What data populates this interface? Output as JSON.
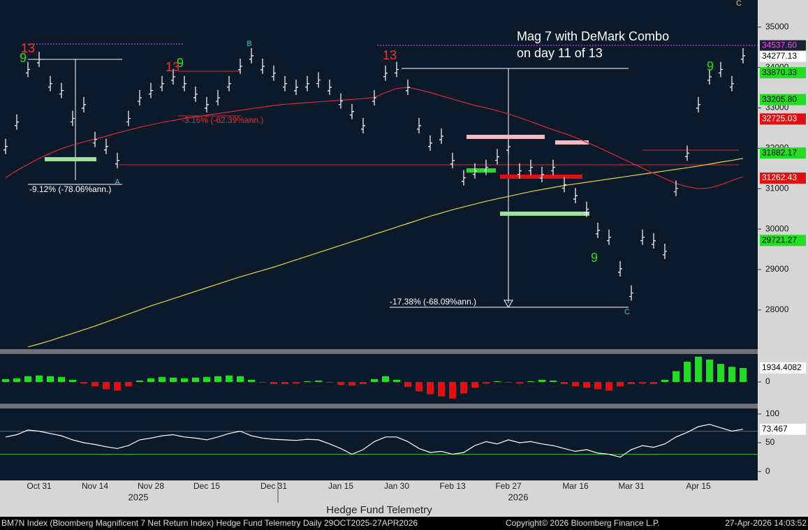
{
  "chart_data": [
    {
      "type": "ohlc",
      "title": "Mag 7 with DeMark Combo",
      "subtitle": "on day 11 of 13",
      "categories": [
        null,
        null,
        null,
        "Oct 31",
        null,
        null,
        null,
        null,
        "Nov 14",
        null,
        null,
        null,
        null,
        "Nov 28",
        null,
        null,
        null,
        null,
        "Dec 15",
        null,
        null,
        null,
        null,
        null,
        "Dec 31",
        null,
        null,
        null,
        null,
        null,
        "Jan 15",
        null,
        null,
        null,
        null,
        "Jan 30",
        null,
        null,
        null,
        null,
        "Feb 13",
        null,
        null,
        null,
        null,
        "Feb 27",
        null,
        null,
        null,
        null,
        null,
        "Mar 16",
        null,
        null,
        null,
        null,
        "Mar 31",
        null,
        null,
        null,
        null,
        null,
        "Apr 15",
        null,
        null,
        null,
        null
      ],
      "values": [
        32045,
        32650,
        33950,
        34200,
        33600,
        33430,
        32740,
        33080,
        32220,
        32045,
        31700,
        32740,
        33250,
        33430,
        33600,
        33770,
        33600,
        33340,
        33080,
        33250,
        33600,
        34030,
        34290,
        34030,
        33860,
        33600,
        33510,
        33600,
        33690,
        33510,
        33170,
        32910,
        32560,
        33250,
        33860,
        33950,
        33510,
        32560,
        32130,
        32300,
        31700,
        31270,
        31440,
        31530,
        31790,
        32040,
        31440,
        31530,
        31350,
        31530,
        31100,
        30830,
        30490,
        29970,
        29800,
        29020,
        28420,
        29800,
        29710,
        29450,
        31010,
        31880,
        33080,
        33770,
        33950,
        33600,
        34290
      ],
      "color": "#ffffff",
      "lines": [
        {
          "color": "#e6d33a",
          "values": [
            null,
            null,
            27085,
            27160,
            27240,
            27330,
            27420,
            27510,
            27600,
            27700,
            27800,
            27900,
            28000,
            28100,
            28190,
            28280,
            28370,
            28460,
            28550,
            28640,
            28730,
            28820,
            28900,
            28980,
            29060,
            29150,
            29240,
            29330,
            29420,
            29510,
            29600,
            29690,
            29780,
            29870,
            29960,
            30050,
            30140,
            30230,
            30320,
            30400,
            30480,
            30550,
            30620,
            30690,
            30750,
            30810,
            30870,
            30930,
            30980,
            31030,
            31080,
            31120,
            31160,
            31200,
            31240,
            31280,
            31320,
            31360,
            31400,
            31440,
            31480,
            31520,
            31560,
            31610,
            31660,
            31700,
            31750
          ]
        },
        {
          "color": "#d8283a",
          "values": [
            31270,
            31450,
            31600,
            31750,
            31880,
            31990,
            32080,
            32160,
            32230,
            32300,
            32380,
            32450,
            32520,
            32580,
            32640,
            32690,
            32740,
            32780,
            32820,
            32860,
            32900,
            32940,
            32980,
            33020,
            33060,
            33090,
            33110,
            33130,
            33150,
            33170,
            33190,
            33210,
            33230,
            33260,
            33380,
            33480,
            33510,
            33450,
            33380,
            33300,
            33220,
            33140,
            33060,
            33000,
            32930,
            32850,
            32760,
            32660,
            32560,
            32460,
            32370,
            32270,
            32150,
            32030,
            31900,
            31770,
            31640,
            31510,
            31380,
            31250,
            31130,
            31050,
            31000,
            31020,
            31100,
            31200,
            31300
          ]
        }
      ],
      "ylim": [
        27030,
        35670
      ],
      "yticks": [
        28000,
        29000,
        30000,
        31000,
        32000,
        33000,
        34000,
        35000
      ],
      "price_labels": [
        {
          "value": 34537.6,
          "label": "34537.60",
          "color": "#1a2233",
          "text_color": "#ff40ff"
        },
        {
          "value": 34277.13,
          "label": "34277.13",
          "color": "#ffffff",
          "text_color": "#000000"
        },
        {
          "value": 33870.33,
          "label": "33870.33",
          "color": "#22dd22",
          "text_color": "#000000"
        },
        {
          "value": 33205.8,
          "label": "33205.80",
          "color": "#22dd22",
          "text_color": "#000000"
        },
        {
          "value": 32725.03,
          "label": "32725.03",
          "color": "#e01010",
          "text_color": "#ffffff"
        },
        {
          "value": 31882.17,
          "label": "31882.17",
          "color": "#22dd22",
          "text_color": "#000000"
        },
        {
          "value": 31262.43,
          "label": "31262.43",
          "color": "#e01010",
          "text_color": "#ffffff"
        },
        {
          "value": 29721.27,
          "label": "29721.27",
          "color": "#22dd22",
          "text_color": "#000000"
        }
      ],
      "annotations": [
        {
          "label": "-9.12% (-78.06%ann.)",
          "color": "#ffffff"
        },
        {
          "label": "-3.16% (-62.39%ann.)",
          "color": "#e03030"
        },
        {
          "label": "-17.38% (-68.09%ann.)",
          "color": "#ffffff"
        }
      ],
      "counts": [
        {
          "label": "13",
          "color": "#ff2a2a"
        },
        {
          "label": "9",
          "color": "#22dd22"
        },
        {
          "label": "9",
          "color": "#22dd22"
        },
        {
          "label": "13",
          "color": "#ff2a2a"
        },
        {
          "label": "13",
          "color": "#ff2a2a"
        },
        {
          "label": "9",
          "color": "#22dd22"
        },
        {
          "label": "9",
          "color": "#22dd22"
        },
        {
          "label": "C",
          "color": "#e6d33a"
        },
        {
          "label": "A",
          "color": "#33ccdd"
        },
        {
          "label": "B",
          "color": "#33ccdd"
        },
        {
          "label": "C",
          "color": "#33ccdd"
        }
      ]
    },
    {
      "type": "bar",
      "values": [
        400,
        500,
        800,
        900,
        800,
        700,
        300,
        -200,
        -600,
        -1000,
        -1200,
        -600,
        200,
        500,
        700,
        600,
        500,
        600,
        700,
        800,
        900,
        800,
        300,
        -100,
        -300,
        -300,
        -200,
        100,
        200,
        -100,
        -400,
        -500,
        -300,
        400,
        800,
        300,
        -700,
        -1300,
        -1700,
        -2000,
        -2300,
        -1600,
        -800,
        -200,
        100,
        -100,
        -200,
        100,
        300,
        200,
        -300,
        -600,
        -800,
        -1000,
        -1200,
        -600,
        -300,
        -200,
        -300,
        300,
        1500,
        2800,
        3500,
        3100,
        2500,
        2100,
        1934.4082
      ],
      "color_up": "#22dd22",
      "color_down": "#dd1111",
      "ylim": [
        -3000,
        3870
      ],
      "yticks": [
        0
      ]
    },
    {
      "type": "line",
      "values": [
        60,
        64,
        72,
        70,
        66,
        62,
        55,
        50,
        47,
        43,
        40,
        45,
        55,
        58,
        62,
        64,
        60,
        58,
        55,
        60,
        66,
        70,
        62,
        58,
        56,
        55,
        54,
        56,
        55,
        48,
        40,
        30,
        38,
        52,
        60,
        60,
        52,
        40,
        33,
        35,
        30,
        33,
        45,
        52,
        48,
        55,
        50,
        52,
        48,
        45,
        40,
        35,
        38,
        32,
        30,
        25,
        38,
        45,
        42,
        48,
        60,
        68,
        78,
        82,
        76,
        70,
        73.467
      ],
      "color": "#ffffff",
      "ylim": [
        -15.5,
        109.5
      ],
      "yticks": [
        0,
        50,
        100
      ],
      "levels": [
        {
          "value": 70,
          "color": "#d03030"
        },
        {
          "value": 30,
          "color": "#30b030"
        }
      ]
    }
  ],
  "year_labels": [
    "2025",
    "2026"
  ],
  "x_axis_title": "Hedge Fund Telemetry",
  "footer": {
    "left": "BM7N Index (Bloomberg Magnificent 7 Net Return Index) Hedge Fund Telemetry Daily 29OCT2025-27APR2026",
    "center": "Copyright© 2026 Bloomberg Finance L.P.",
    "right": "27-Apr-2026 14:03:52"
  }
}
